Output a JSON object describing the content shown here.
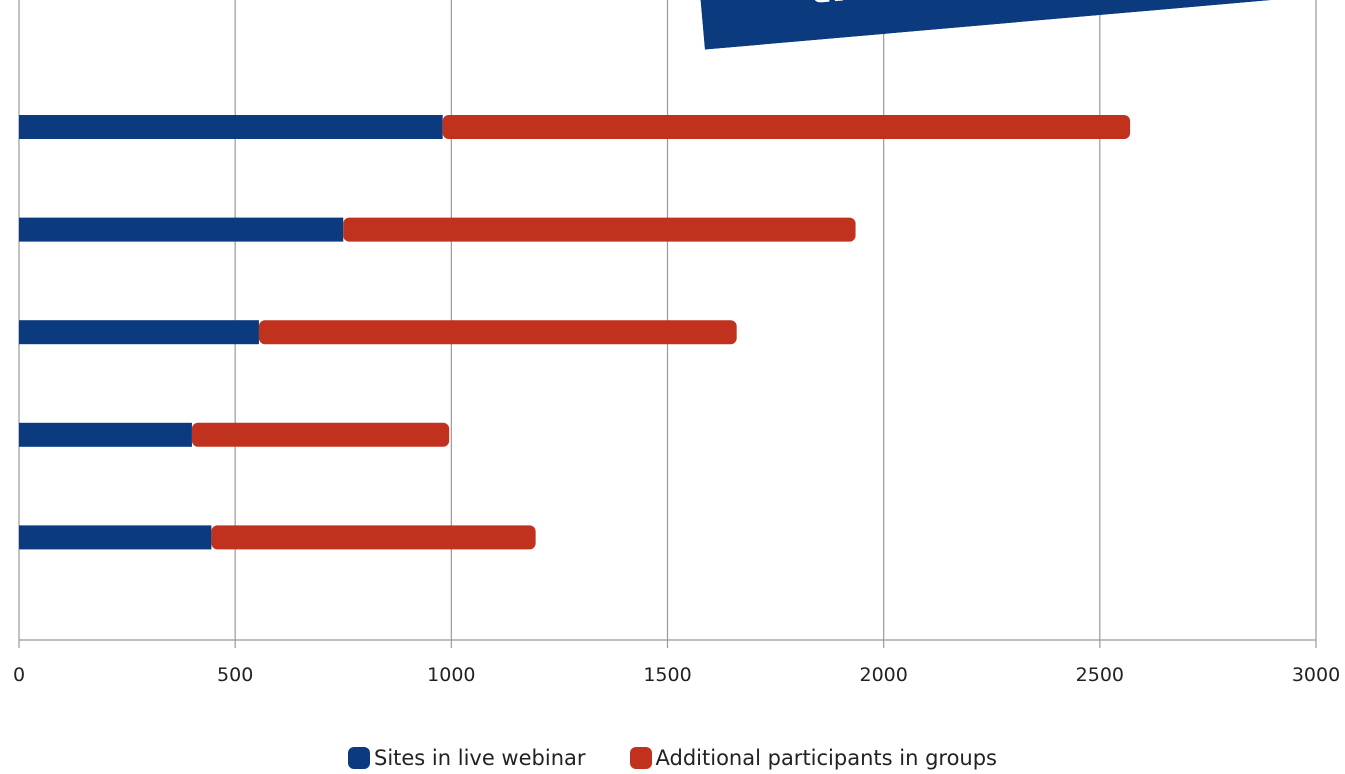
{
  "banner": {
    "text": "thus far in"
  },
  "chart_data": {
    "type": "bar",
    "orientation": "horizontal",
    "stacked": true,
    "x_ticks": [
      "0",
      "500",
      "1000",
      "1500",
      "2000",
      "2500",
      "3000"
    ],
    "xlim": [
      0,
      3000
    ],
    "grid": "vertical",
    "legend_position": "bottom",
    "series": [
      {
        "name": "Sites in live webinar",
        "color": "#0b3a7e",
        "values": [
          980,
          750,
          555,
          400,
          445
        ]
      },
      {
        "name": "Additional participants in groups",
        "color": "#c0321e",
        "values": [
          1590,
          1185,
          1105,
          595,
          750
        ]
      }
    ]
  },
  "colors": {
    "axis": "#999999",
    "banner": "#0b3a7e"
  }
}
